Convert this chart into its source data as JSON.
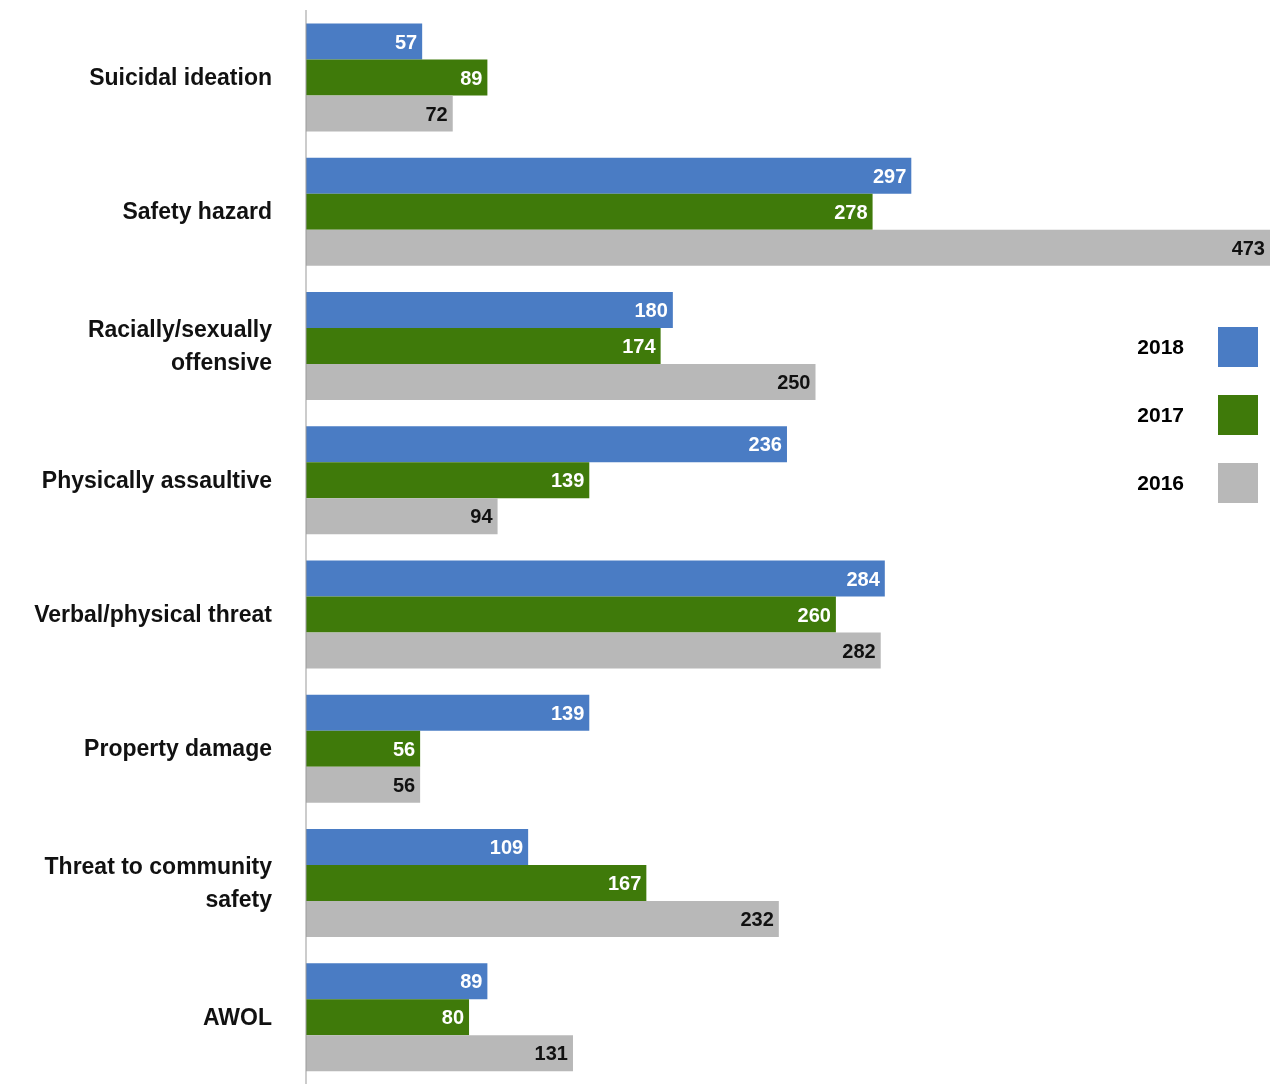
{
  "chart_data": {
    "type": "bar",
    "orientation": "horizontal",
    "categories": [
      "Suicidal ideation",
      "Safety hazard",
      "Racially/sexually offensive",
      "Physically assaultive",
      "Verbal/physical threat",
      "Property damage",
      "Threat to community safety",
      "AWOL"
    ],
    "series": [
      {
        "name": "2018",
        "color": "#4a7cc4",
        "values": [
          57,
          297,
          180,
          236,
          284,
          139,
          109,
          89
        ]
      },
      {
        "name": "2017",
        "color": "#3f7a0a",
        "values": [
          89,
          278,
          174,
          139,
          260,
          56,
          167,
          80
        ]
      },
      {
        "name": "2016",
        "color": "#b8b8b8",
        "values": [
          72,
          473,
          250,
          94,
          282,
          56,
          232,
          131
        ]
      }
    ],
    "data_labels": true,
    "legend": "right"
  }
}
